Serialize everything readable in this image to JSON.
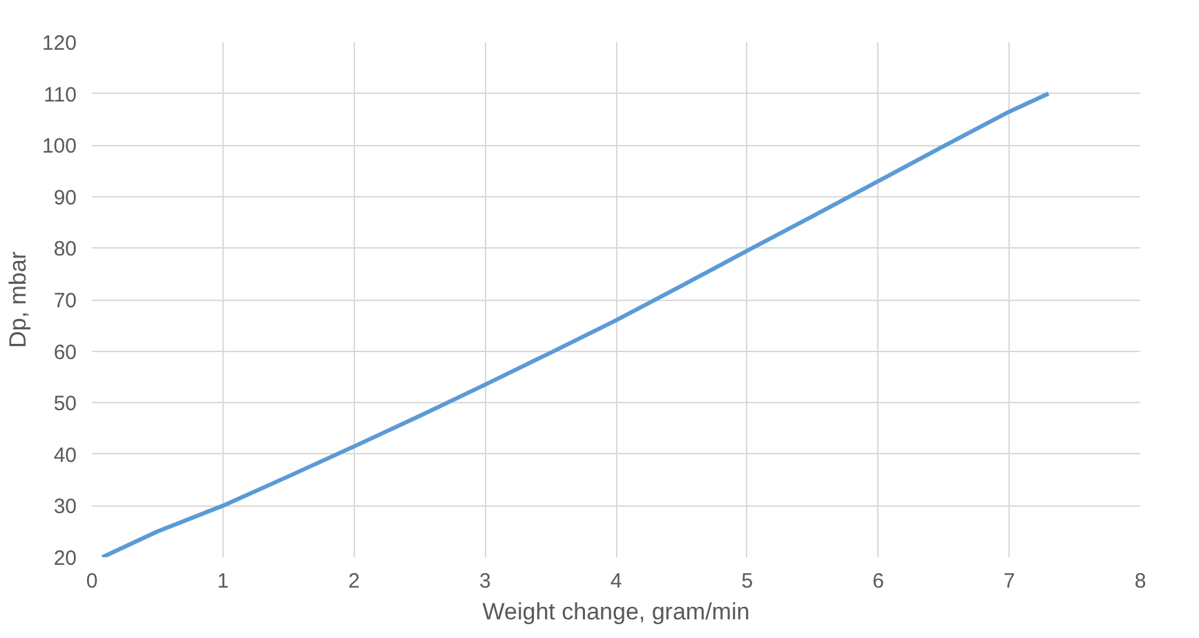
{
  "chart_data": {
    "type": "line",
    "xlabel": "Weight change, gram/min",
    "ylabel": "Dp, mbar",
    "x": [
      0.08,
      0.5,
      1,
      1.5,
      2,
      2.5,
      3,
      3.5,
      4,
      4.5,
      5,
      5.5,
      6,
      6.5,
      7,
      7.3
    ],
    "series": [
      {
        "color": "#5b9bd5",
        "values": [
          20,
          25,
          30,
          35.7,
          41.5,
          47.4,
          53.5,
          59.7,
          66,
          72.7,
          79.5,
          86.2,
          93,
          99.8,
          106.5,
          110
        ]
      }
    ],
    "xlim": [
      0,
      8
    ],
    "xticks": [
      0,
      1,
      2,
      3,
      4,
      5,
      6,
      7,
      8
    ],
    "ylim": [
      20,
      120
    ],
    "yticks": [
      20,
      30,
      40,
      50,
      60,
      70,
      80,
      90,
      100,
      110,
      120
    ],
    "grid": true,
    "marker": "none",
    "line_style": "solid"
  }
}
